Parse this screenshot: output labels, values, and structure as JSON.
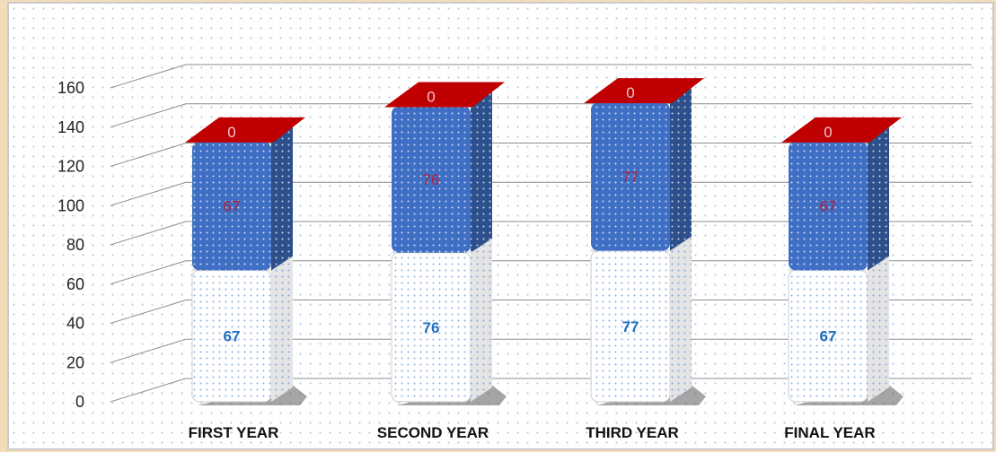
{
  "chart_data": {
    "type": "bar",
    "stacked": true,
    "three_d": true,
    "categories": [
      "FIRST YEAR",
      "SECOND YEAR",
      "THIRD YEAR",
      "FINAL YEAR"
    ],
    "series": [
      {
        "values": [
          67,
          76,
          77,
          67
        ],
        "color": "#ffffff",
        "label_color": "#1f6fc0"
      },
      {
        "values": [
          67,
          76,
          77,
          67
        ],
        "color": "#3f6fc4",
        "label_color": "#b01f3a"
      },
      {
        "values": [
          0,
          0,
          0,
          0
        ],
        "color": "#c00000",
        "label_color": "#e6c8d0"
      }
    ],
    "ylim": [
      0,
      160
    ],
    "yticks": [
      0,
      20,
      40,
      60,
      80,
      100,
      120,
      140,
      160
    ],
    "grid": true,
    "title": "",
    "xlabel": "",
    "ylabel": ""
  },
  "colors": {
    "background_accent": "#f3dcb8",
    "plot_background": "#ffffff",
    "gridline": "#8c8c8c"
  }
}
